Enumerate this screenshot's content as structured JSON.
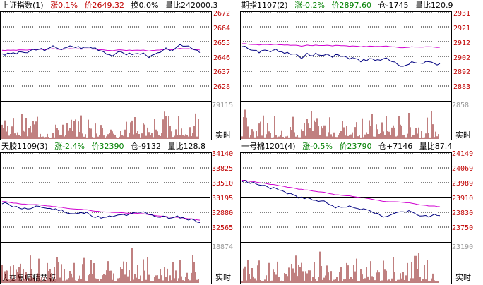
{
  "panels": [
    {
      "header": {
        "name": "上证指数(1)",
        "change": "涨0.1%",
        "price": "价2649.32",
        "extra": "换0.0%",
        "ratio": "量比242000.3"
      },
      "price_ticks": [
        "2672",
        "2664",
        "2655",
        "2646",
        "2637",
        "2628"
      ],
      "volume_tick": "79115",
      "realtime_label": "实时"
    },
    {
      "header": {
        "name": "期指1107(2)",
        "change": "涨-0.2%",
        "price": "价2897.60",
        "extra": "仓-1745",
        "ratio": "量比120.9"
      },
      "price_ticks": [
        "2931",
        "2921",
        "2912",
        "2902",
        "2892",
        "2883"
      ],
      "volume_tick": "2858",
      "realtime_label": "实时"
    },
    {
      "header": {
        "name": "天胶1109(3)",
        "change": "涨-2.4%",
        "price": "价32390",
        "extra": "仓-9132",
        "ratio": "量比128.8"
      },
      "price_ticks": [
        "34140",
        "33825",
        "33510",
        "33195",
        "32880",
        "32565"
      ],
      "volume_tick": "18874",
      "realtime_label": "实时"
    },
    {
      "header": {
        "name": "一号棉1201(4)",
        "change": "涨-0.5%",
        "price": "价23790",
        "extra": "仓+7146",
        "ratio": "量比87.4"
      },
      "price_ticks": [
        "24149",
        "24069",
        "23989",
        "23910",
        "23830",
        "23750"
      ],
      "volume_tick": "23190",
      "realtime_label": "实时"
    }
  ],
  "watermark": "大交易师精英版",
  "colors": {
    "price_line": "#000080",
    "avg_line": "#d000d0",
    "vol_bar": "#800000",
    "axis_text": "#c00000",
    "grid": "#000000"
  }
}
